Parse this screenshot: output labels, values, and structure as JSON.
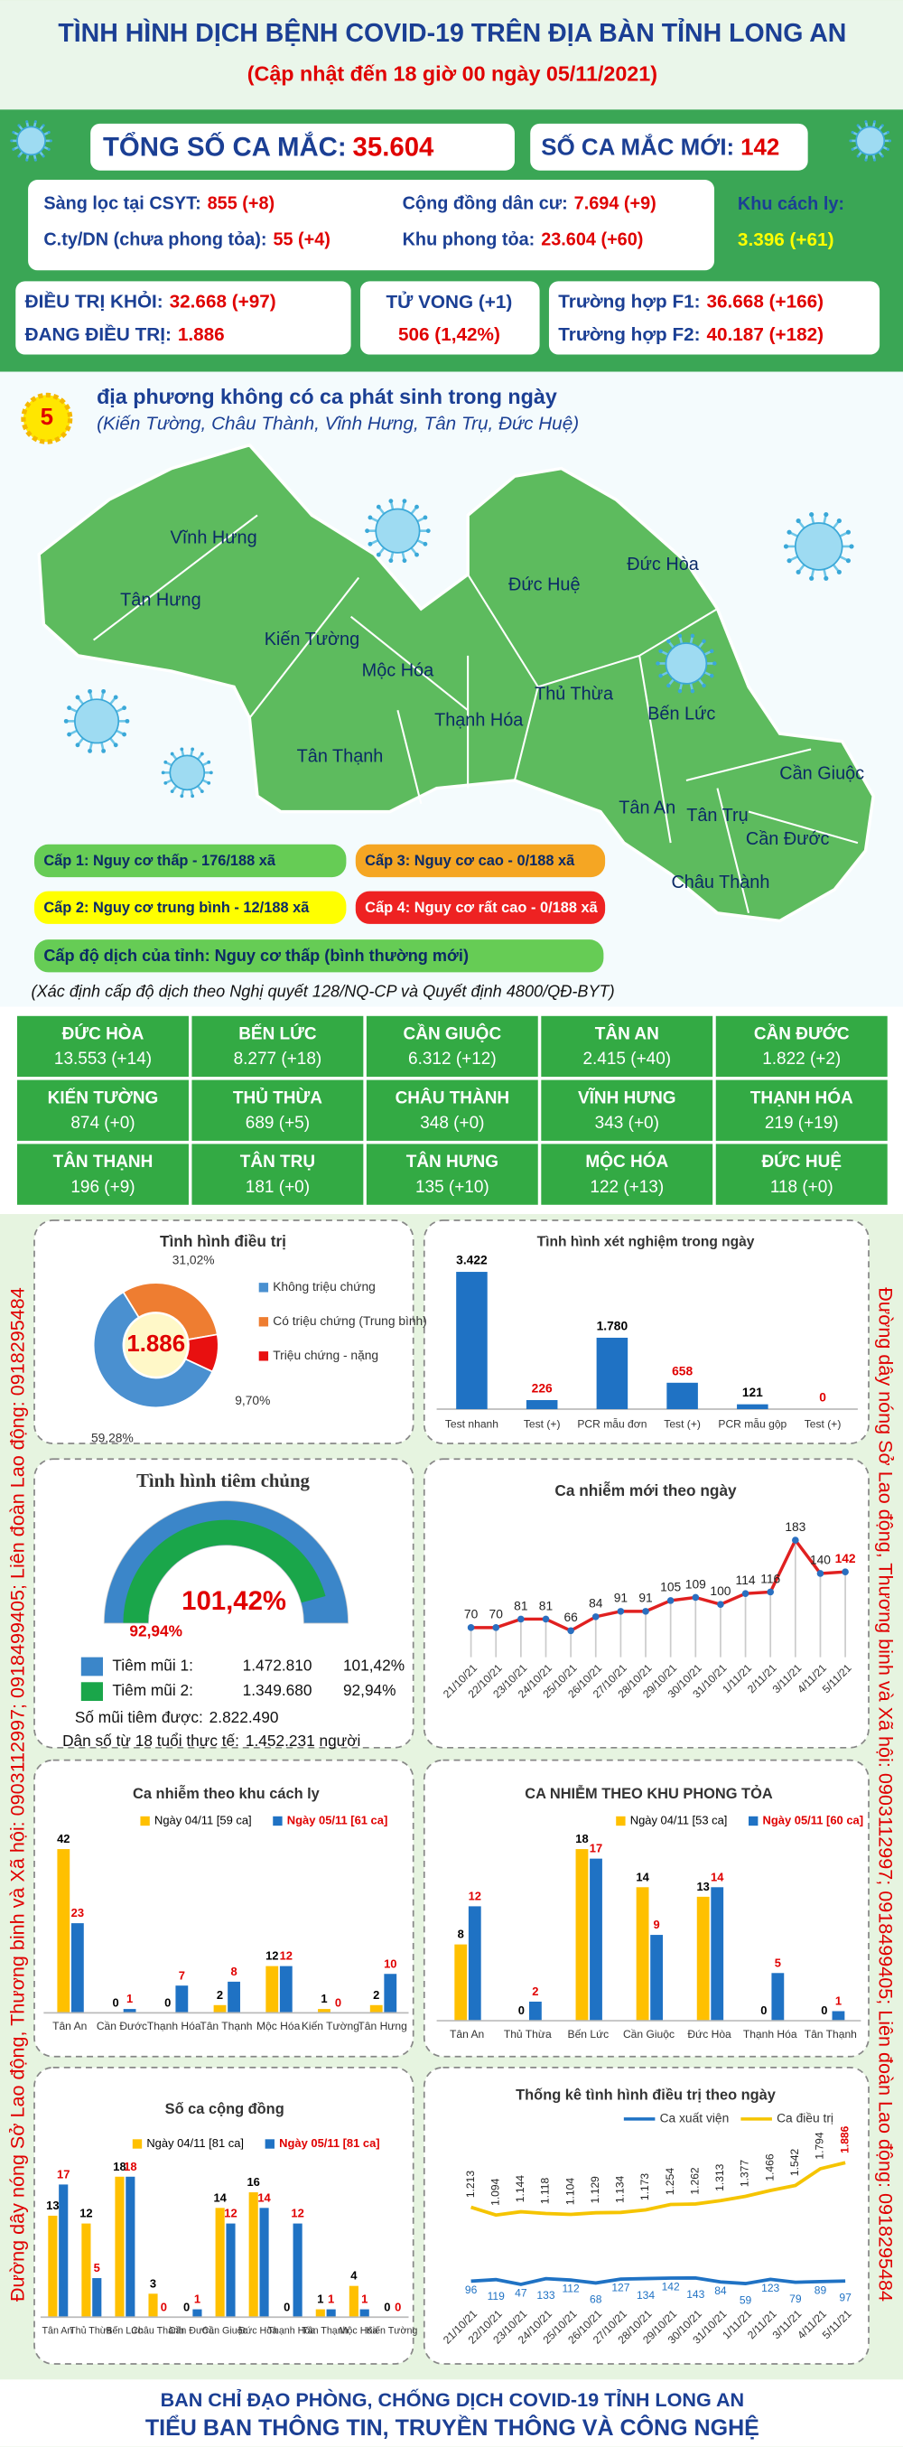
{
  "header": {
    "title": "TÌNH HÌNH DỊCH BỆNH COVID-19 TRÊN ĐỊA BÀN TỈNH LONG AN",
    "subtitle": "(Cập nhật đến 18 giờ 00 ngày 05/11/2021)"
  },
  "summary": {
    "total": {
      "label": "TỔNG SỐ CA MẮC:",
      "value": "35.604"
    },
    "new": {
      "label": "SỐ CA MẮC MỚI:",
      "value": "142"
    },
    "sources": [
      {
        "label": "Sàng lọc tại CSYT:",
        "value": "855 (+8)"
      },
      {
        "label": "Cộng đồng dân cư:",
        "value": "7.694 (+9)"
      },
      {
        "label": "C.ty/DN (chưa phong tỏa):",
        "value": "55 (+4)"
      },
      {
        "label": "Khu phong tỏa:",
        "value": "23.604 (+60)"
      }
    ],
    "isolation": {
      "label": "Khu cách ly:",
      "value": "3.396 (+61)"
    },
    "recovered": {
      "label": "ĐIỀU TRỊ KHỎI:",
      "value": "32.668 (+97)"
    },
    "treating": {
      "label": "ĐANG ĐIỀU TRỊ:",
      "value": "1.886"
    },
    "deaths": {
      "label": "TỬ VONG (+1)",
      "value": "506 (1,42%)"
    },
    "f1": {
      "label": "Trường hợp F1:",
      "value": "36.668 (+166)"
    },
    "f2": {
      "label": "Trường hợp F2:",
      "value": "40.187 (+182)"
    }
  },
  "map": {
    "count": "5",
    "headline": "địa phương không có ca phát sinh trong ngày",
    "list": "(Kiến Tường, Châu Thành, Vĩnh Hưng, Tân Trụ, Đức Huệ)",
    "districts": [
      "Vĩnh Hưng",
      "Tân Hưng",
      "Kiến Tường",
      "Mộc Hóa",
      "Tân Thạnh",
      "Thạnh Hóa",
      "Thủ Thừa",
      "Đức Huệ",
      "Đức Hòa",
      "Bến Lức",
      "Tân An",
      "Tân Trụ",
      "Châu Thành",
      "Cần Giuộc",
      "Cần Đước"
    ],
    "levels": [
      {
        "label": "Cấp 1: Nguy cơ thấp - 176/188 xã",
        "color": "#66cc55"
      },
      {
        "label": "Cấp 3: Nguy cơ cao - 0/188 xã",
        "color": "#f5a623"
      },
      {
        "label": "Cấp 2: Nguy cơ trung bình - 12/188 xã",
        "color": "#ffff00"
      },
      {
        "label": "Cấp 4: Nguy cơ rất cao - 0/188 xã",
        "color": "#ee2222"
      }
    ],
    "province_level": "Cấp độ dịch của tỉnh: Nguy cơ thấp (bình thường mới)",
    "note": "(Xác định cấp độ dịch theo Nghị quyết 128/NQ-CP và Quyết định 4800/QĐ-BYT)"
  },
  "districts_table": [
    {
      "name": "ĐỨC HÒA",
      "value": "13.553 (+14)"
    },
    {
      "name": "BẾN LỨC",
      "value": "8.277 (+18)"
    },
    {
      "name": "CẦN GIUỘC",
      "value": "6.312 (+12)"
    },
    {
      "name": "TÂN AN",
      "value": "2.415 (+40)"
    },
    {
      "name": "CẦN ĐƯỚC",
      "value": "1.822 (+2)"
    },
    {
      "name": "KIẾN TƯỜNG",
      "value": "874 (+0)"
    },
    {
      "name": "THỦ THỪA",
      "value": "689 (+5)"
    },
    {
      "name": "CHÂU THÀNH",
      "value": "348 (+0)"
    },
    {
      "name": "VĨNH HƯNG",
      "value": "343 (+0)"
    },
    {
      "name": "THẠNH HÓA",
      "value": "219 (+19)"
    },
    {
      "name": "TÂN THẠNH",
      "value": "196 (+9)"
    },
    {
      "name": "TÂN TRỤ",
      "value": "181 (+0)"
    },
    {
      "name": "TÂN HƯNG",
      "value": "135 (+10)"
    },
    {
      "name": "MỘC HÓA",
      "value": "122 (+13)"
    },
    {
      "name": "ĐỨC HUỆ",
      "value": "118 (+0)"
    }
  ],
  "treatment": {
    "type": "donut",
    "title": "Tình hình điều trị",
    "center_label": "1.886",
    "categories": [
      "Không triệu chứng",
      "Có triệu chứng (Trung bình)",
      "Triệu chứng - nặng"
    ],
    "values": [
      59.28,
      31.02,
      9.7
    ],
    "value_labels": [
      "59,28%",
      "31,02%",
      "9,70%"
    ],
    "colors": [
      "#4a90d0",
      "#ee7d31",
      "#e81010"
    ]
  },
  "tests": {
    "type": "bar",
    "title": "Tình hình xét nghiệm trong ngày",
    "categories": [
      "Test nhanh",
      "Test (+)",
      "PCR mẫu đơn",
      "Test (+)",
      "PCR mẫu gộp",
      "Test (+)"
    ],
    "values": [
      3422,
      226,
      1780,
      658,
      121,
      0
    ],
    "value_labels": [
      "3.422",
      "226",
      "1.780",
      "658",
      "121",
      "0"
    ],
    "color": "#1f72c4",
    "label_colors": [
      "#000000",
      "#e00000",
      "#000000",
      "#e00000",
      "#000000",
      "#e00000"
    ]
  },
  "vaccination": {
    "type": "gauge",
    "title": "Tình hình tiêm chủng",
    "series": [
      {
        "name": "Tiêm mũi 1:",
        "color": "#3b86c9",
        "count": "1.472.810",
        "value": 101.42,
        "value_label": "101,42%"
      },
      {
        "name": "Tiêm mũi 2:",
        "color": "#1aa64a",
        "count": "1.349.680",
        "value": 92.94,
        "value_label": "92,94%"
      }
    ],
    "doses": {
      "label": "Số mũi tiêm được:",
      "value": "2.822.490"
    },
    "population": {
      "label": "Dân số từ 18 tuổi thực tế:",
      "value": "1.452.231 người"
    }
  },
  "new_cases": {
    "type": "line",
    "title": "Ca nhiễm mới theo ngày",
    "categories": [
      "21/10/21",
      "22/10/21",
      "23/10/21",
      "24/10/21",
      "25/10/21",
      "26/10/21",
      "27/10/21",
      "28/10/21",
      "29/10/21",
      "30/10/21",
      "31/10/21",
      "1/11/21",
      "2/11/21",
      "3/11/21",
      "4/11/21",
      "5/11/21"
    ],
    "values": [
      70,
      70,
      81,
      81,
      66,
      84,
      91,
      91,
      105,
      109,
      100,
      114,
      116,
      183,
      140,
      142
    ],
    "color": "#e02020",
    "marker_color": "#2a6fc0"
  },
  "isolation_cases": {
    "type": "grouped_bar",
    "title": "Ca nhiễm theo khu cách ly",
    "categories": [
      "Tân An",
      "Cần Đước",
      "Thạnh Hóa",
      "Tân Thạnh",
      "Mộc Hóa",
      "Kiến Tường",
      "Tân Hưng"
    ],
    "series": [
      {
        "name": "Ngày 04/11 [59 ca]",
        "color": "#ffc000",
        "label_color": "#000000",
        "values": [
          42,
          0,
          0,
          2,
          12,
          1,
          2
        ]
      },
      {
        "name": "Ngày 05/11 [61 ca]",
        "color": "#1f72c4",
        "label_color": "#e00000",
        "values": [
          23,
          1,
          7,
          8,
          12,
          0,
          10
        ]
      }
    ]
  },
  "lockdown_cases": {
    "type": "grouped_bar",
    "title": "CA NHIỄM THEO KHU PHONG TỎA",
    "categories": [
      "Tân An",
      "Thủ Thừa",
      "Bến Lức",
      "Cần Giuộc",
      "Đức Hòa",
      "Thạnh Hóa",
      "Tân Thạnh"
    ],
    "series": [
      {
        "name": "Ngày 04/11 [53 ca]",
        "color": "#ffc000",
        "label_color": "#000000",
        "values": [
          8,
          0,
          18,
          14,
          13,
          0,
          0
        ]
      },
      {
        "name": "Ngày 05/11 [60 ca]",
        "color": "#1f72c4",
        "label_color": "#e00000",
        "values": [
          12,
          2,
          17,
          9,
          14,
          5,
          1
        ]
      }
    ]
  },
  "community_cases": {
    "type": "grouped_bar",
    "title": "Số ca cộng đồng",
    "categories": [
      "Tân An",
      "Thủ Thừa",
      "Bến Lức",
      "Châu Thành",
      "Cần Đước",
      "Cần Giuộc",
      "Đức Hòa",
      "Thạnh Hóa",
      "Tân Thạnh",
      "Mộc Hóa",
      "Kiến Tường"
    ],
    "series": [
      {
        "name": "Ngày 04/11 [81 ca]",
        "color": "#ffc000",
        "label_color": "#000000",
        "values": [
          13,
          12,
          18,
          3,
          0,
          14,
          16,
          0,
          1,
          4,
          0
        ]
      },
      {
        "name": "Ngày 05/11 [81 ca]",
        "color": "#1f72c4",
        "label_color": "#e00000",
        "values": [
          17,
          5,
          18,
          0,
          1,
          12,
          14,
          12,
          1,
          1,
          0
        ]
      }
    ]
  },
  "treatment_daily": {
    "type": "multi_line",
    "title": "Thống kê tình hình điều trị theo ngày",
    "categories": [
      "21/10/21",
      "22/10/21",
      "23/10/21",
      "24/10/21",
      "25/10/21",
      "26/10/21",
      "27/10/21",
      "28/10/21",
      "29/10/21",
      "30/10/21",
      "31/10/21",
      "1/11/21",
      "2/11/21",
      "3/11/21",
      "4/11/21",
      "5/11/21"
    ],
    "series": [
      {
        "name": "Ca xuất viện",
        "color": "#1f72c4",
        "values": [
          96,
          119,
          47,
          133,
          112,
          68,
          127,
          134,
          142,
          143,
          84,
          59,
          123,
          79,
          89,
          97
        ]
      },
      {
        "name": "Ca điều trị",
        "color": "#f5c400",
        "values": [
          1213,
          1094,
          1144,
          1118,
          1104,
          1129,
          1134,
          1173,
          1254,
          1262,
          1313,
          1377,
          1466,
          1542,
          1794,
          1886
        ],
        "value_labels": [
          "1.213",
          "1.094",
          "1.144",
          "1.118",
          "1.104",
          "1.129",
          "1.134",
          "1.173",
          "1.254",
          "1.262",
          "1.313",
          "1.377",
          "1.466",
          "1.542",
          "1.794",
          "1.886"
        ]
      }
    ]
  },
  "hotline": "Đường dây nóng Sở Lao động, Thương binh và Xã hội: 0903112997; 0918499405; Liên đoàn Lao động: 0918295484",
  "footer": {
    "line1": "BAN CHỈ ĐẠO PHÒNG, CHỐNG DỊCH COVID-19 TỈNH LONG AN",
    "line2": "TIỂU BAN THÔNG TIN, TRUYỀN THÔNG VÀ CÔNG NGHỆ"
  }
}
